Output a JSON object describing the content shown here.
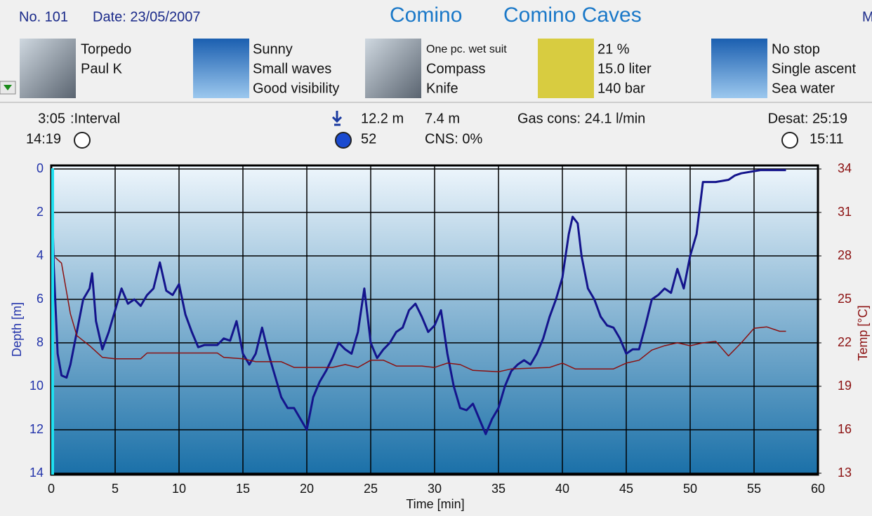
{
  "header": {
    "number": "No. 101",
    "date": "Date: 23/05/2007",
    "location": "Comino",
    "site": "Comino Caves",
    "cut": "M"
  },
  "columns": [
    {
      "lines": [
        "Torpedo",
        "Paul K"
      ]
    },
    {
      "lines": [
        "Sunny",
        "Small waves",
        "Good visibility"
      ]
    },
    {
      "lines": [
        "One pc. wet suit",
        "Compass",
        "Knife"
      ]
    },
    {
      "lines": [
        "21 %",
        "15.0 liter",
        "140 bar"
      ]
    },
    {
      "lines": [
        "No stop",
        "Single ascent",
        "Sea water"
      ]
    }
  ],
  "stats": {
    "interval_time": "3:05",
    "interval_label": ":Interval",
    "entry_time": "14:19",
    "max_depth": "12.2 m",
    "avg_depth": "7.4 m",
    "duration": "52",
    "cns": "CNS:  0%",
    "gas": "Gas cons: 24.1 l/min",
    "desat": "Desat: 25:19",
    "exit_time": "15:11"
  },
  "chart_data": {
    "type": "line",
    "x_label": "Time [min]",
    "y_label": "Depth [m]",
    "y2_label": "Temp [°C]",
    "xlim": [
      0,
      60
    ],
    "xticks": [
      0,
      5,
      10,
      15,
      20,
      25,
      30,
      35,
      40,
      45,
      50,
      55,
      60
    ],
    "ylim": [
      0,
      14
    ],
    "y_inverted": true,
    "yticks": [
      0,
      2,
      4,
      6,
      8,
      10,
      12,
      14
    ],
    "y2lim": [
      13,
      34
    ],
    "y2ticks": [
      13,
      16,
      19,
      22,
      25,
      28,
      31,
      34
    ],
    "grid": true,
    "series": [
      {
        "color": "#14148c",
        "x": [
          0,
          0.2,
          0.5,
          0.8,
          1.2,
          1.5,
          2,
          2.5,
          3,
          3.2,
          3.5,
          4,
          4.5,
          5,
          5.5,
          6,
          6.5,
          7,
          7.5,
          8,
          8.5,
          9,
          9.5,
          10,
          10.5,
          11,
          11.5,
          12,
          13,
          13.5,
          14,
          14.5,
          15,
          15.5,
          16,
          16.5,
          17,
          17.5,
          18,
          18.5,
          19,
          19.5,
          20,
          20.5,
          21,
          21.5,
          22,
          22.5,
          23,
          23.5,
          24,
          24.5,
          25,
          25.5,
          26,
          26.5,
          27,
          27.5,
          28,
          28.5,
          29,
          29.5,
          30,
          30.5,
          31,
          31.5,
          32,
          32.5,
          33,
          33.5,
          34,
          34.5,
          35,
          35.5,
          36,
          36.5,
          37,
          37.5,
          38,
          38.5,
          39,
          39.5,
          40,
          40.5,
          40.8,
          41.2,
          41.5,
          42,
          42.5,
          43,
          43.5,
          44,
          44.5,
          45,
          45.5,
          46,
          46.5,
          47,
          47.5,
          48,
          48.5,
          49,
          49.5,
          50,
          50.5,
          51,
          51.5,
          52,
          53,
          53.5,
          54,
          55,
          55.5,
          57.5
        ],
        "values": [
          0,
          4.5,
          8.5,
          9.5,
          9.6,
          9,
          7.5,
          6,
          5.5,
          4.8,
          7,
          8.3,
          7.5,
          6.5,
          5.5,
          6.2,
          6,
          6.3,
          5.8,
          5.5,
          4.3,
          5.6,
          5.8,
          5.3,
          6.7,
          7.5,
          8.2,
          8.1,
          8.1,
          7.8,
          7.9,
          7,
          8.5,
          9,
          8.5,
          7.3,
          8.5,
          9.5,
          10.5,
          11,
          11,
          11.5,
          12,
          10.5,
          9.8,
          9.3,
          8.7,
          8,
          8.3,
          8.5,
          7.5,
          5.5,
          8,
          8.7,
          8.3,
          8,
          7.5,
          7.3,
          6.5,
          6.2,
          6.8,
          7.5,
          7.2,
          6.5,
          8.5,
          10,
          11,
          11.1,
          10.8,
          11.5,
          12.2,
          11.5,
          11,
          10,
          9.3,
          9,
          8.8,
          9,
          8.5,
          7.8,
          6.8,
          6,
          5,
          3,
          2.2,
          2.5,
          4,
          5.5,
          6,
          6.8,
          7.2,
          7.3,
          7.8,
          8.5,
          8.3,
          8.3,
          7.2,
          6,
          5.8,
          5.5,
          5.7,
          4.6,
          5.5,
          4,
          3,
          0.6,
          0.6,
          0.6,
          0.5,
          0.3,
          0.2,
          0.1,
          0.05,
          0.05
        ]
      },
      {
        "color": "#8b1010",
        "axis": "y2",
        "x": [
          0.3,
          0.8,
          1.5,
          2,
          3,
          4,
          5,
          7,
          7.5,
          13,
          13.5,
          15,
          16,
          18,
          19,
          22,
          23,
          24,
          25,
          26,
          27,
          29,
          30,
          31,
          32,
          33,
          35,
          36,
          39,
          40,
          41,
          44,
          45,
          46,
          47,
          48,
          49,
          50,
          51,
          52,
          53,
          54,
          55,
          56,
          57,
          57.5
        ],
        "values": [
          27.9,
          27.5,
          24,
          22.5,
          21.8,
          21,
          20.9,
          20.9,
          21.3,
          21.3,
          21,
          20.9,
          20.7,
          20.7,
          20.3,
          20.3,
          20.5,
          20.3,
          20.8,
          20.8,
          20.4,
          20.4,
          20.3,
          20.6,
          20.5,
          20.1,
          20,
          20.2,
          20.3,
          20.6,
          20.2,
          20.2,
          20.6,
          20.8,
          21.5,
          21.8,
          22,
          21.8,
          22,
          22.1,
          21.1,
          22,
          23,
          23.1,
          22.8,
          22.8
        ]
      }
    ]
  }
}
